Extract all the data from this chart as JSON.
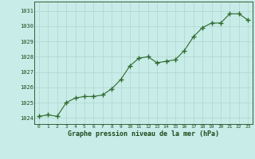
{
  "x": [
    0,
    1,
    2,
    3,
    4,
    5,
    6,
    7,
    8,
    9,
    10,
    11,
    12,
    13,
    14,
    15,
    16,
    17,
    18,
    19,
    20,
    21,
    22,
    23
  ],
  "y": [
    1024.1,
    1024.2,
    1024.1,
    1025.0,
    1025.3,
    1025.4,
    1025.4,
    1025.5,
    1025.9,
    1026.5,
    1027.4,
    1027.9,
    1028.0,
    1027.6,
    1027.7,
    1027.8,
    1028.4,
    1029.3,
    1029.9,
    1030.2,
    1030.2,
    1030.8,
    1030.8,
    1030.4
  ],
  "line_color": "#2d6a2d",
  "marker": "+",
  "marker_size": 4,
  "bg_color": "#c8ece8",
  "grid_color": "#b0d4ce",
  "xlabel": "Graphe pression niveau de la mer (hPa)",
  "xlabel_color": "#1a4a1a",
  "tick_color": "#1a4a1a",
  "ylim_min": 1023.6,
  "ylim_max": 1031.6,
  "xlim_min": -0.5,
  "xlim_max": 23.5,
  "yticks": [
    1024,
    1025,
    1026,
    1027,
    1028,
    1029,
    1030,
    1031
  ],
  "xticks": [
    0,
    1,
    2,
    3,
    4,
    5,
    6,
    7,
    8,
    9,
    10,
    11,
    12,
    13,
    14,
    15,
    16,
    17,
    18,
    19,
    20,
    21,
    22,
    23
  ]
}
